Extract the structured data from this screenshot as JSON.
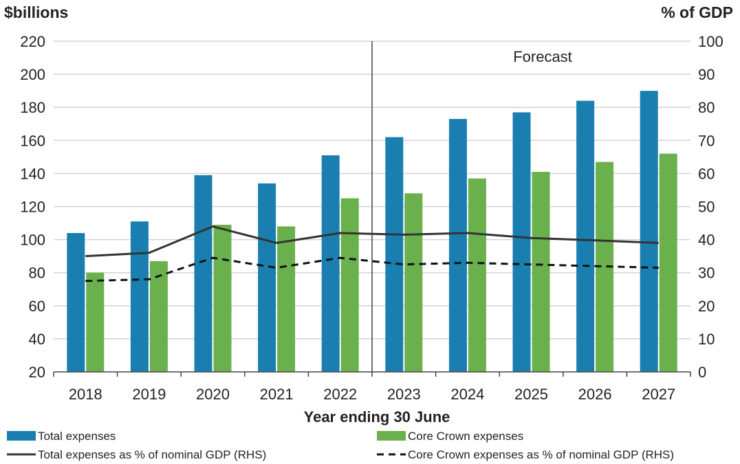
{
  "chart_data": {
    "type": "bar",
    "categories": [
      "2018",
      "2019",
      "2020",
      "2021",
      "2022",
      "2023",
      "2024",
      "2025",
      "2026",
      "2027"
    ],
    "series": [
      {
        "name": "Total expenses",
        "type": "bar",
        "axis": "left",
        "color": "#1a7fb0",
        "values": [
          104,
          111,
          139,
          134,
          151,
          162,
          173,
          177,
          184,
          190
        ]
      },
      {
        "name": "Core Crown expenses",
        "type": "bar",
        "axis": "left",
        "color": "#6ab04c",
        "values": [
          80,
          87,
          109,
          108,
          125,
          128,
          137,
          141,
          147,
          152
        ]
      },
      {
        "name": "Total expenses as % of nominal GDP (RHS)",
        "type": "line",
        "style": "solid",
        "axis": "right",
        "color": "#333333",
        "values": [
          35.0,
          36.0,
          44.0,
          39.0,
          42.0,
          41.5,
          42.0,
          40.5,
          39.8,
          39.0
        ]
      },
      {
        "name": "Core Crown expenses as % of nominal GDP (RHS)",
        "type": "line",
        "style": "dashed",
        "axis": "right",
        "color": "#111111",
        "values": [
          27.5,
          28.0,
          34.5,
          31.5,
          34.5,
          32.5,
          33.0,
          32.5,
          32.0,
          31.5
        ]
      }
    ],
    "ylabel_left": "$billions",
    "ylabel_right": "% of GDP",
    "xlabel": "Year ending 30 June",
    "ylim_left": [
      20,
      220
    ],
    "ylim_right": [
      0,
      100
    ],
    "yticks_left": [
      20,
      40,
      60,
      80,
      100,
      120,
      140,
      160,
      180,
      200,
      220
    ],
    "yticks_right": [
      0,
      10,
      20,
      30,
      40,
      50,
      60,
      70,
      80,
      90,
      100
    ],
    "grid": true,
    "forecast_divider_after": "2022",
    "forecast_label": "Forecast",
    "legend_position": "bottom"
  }
}
